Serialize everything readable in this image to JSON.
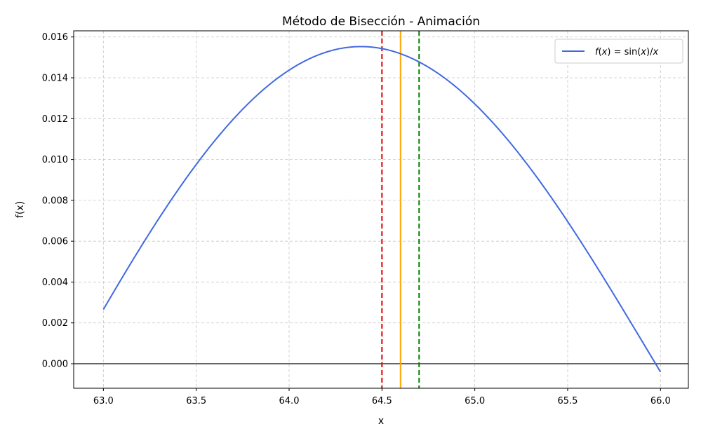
{
  "chart_data": {
    "type": "line",
    "title": "Método de Bisección - Animación",
    "xlabel": "x",
    "ylabel": "f(x)",
    "xlim": [
      62.84,
      66.15
    ],
    "ylim": [
      -0.0012,
      0.0163
    ],
    "xticks": [
      63.0,
      63.5,
      64.0,
      64.5,
      65.0,
      65.5,
      66.0
    ],
    "xtick_labels": [
      "63.0",
      "63.5",
      "64.0",
      "64.5",
      "65.0",
      "65.5",
      "66.0"
    ],
    "yticks": [
      0.0,
      0.002,
      0.004,
      0.006,
      0.008,
      0.01,
      0.012,
      0.014,
      0.016
    ],
    "ytick_labels": [
      "0.000",
      "0.002",
      "0.004",
      "0.006",
      "0.008",
      "0.010",
      "0.012",
      "0.014",
      "0.016"
    ],
    "grid": true,
    "legend_position": "top-right",
    "series": [
      {
        "name": "f(x) = sin(x)/x",
        "legend": {
          "f": "f",
          "open1": "(",
          "x1": "x",
          "mid": ") = sin(",
          "x2": "x",
          "slash": ")/",
          "x3": "x"
        },
        "color": "#4169e1",
        "function": "sin(x)/x",
        "x_range": [
          63.0,
          66.0
        ]
      }
    ],
    "vertical_lines": [
      {
        "x": 64.5,
        "color": "#e00000",
        "style": "dashed"
      },
      {
        "x": 64.6,
        "color": "#ffa500",
        "style": "solid"
      },
      {
        "x": 64.7,
        "color": "#008000",
        "style": "dashed"
      }
    ],
    "horizontal_lines": [
      {
        "y": 0.0,
        "color": "#333333",
        "style": "solid"
      }
    ]
  }
}
